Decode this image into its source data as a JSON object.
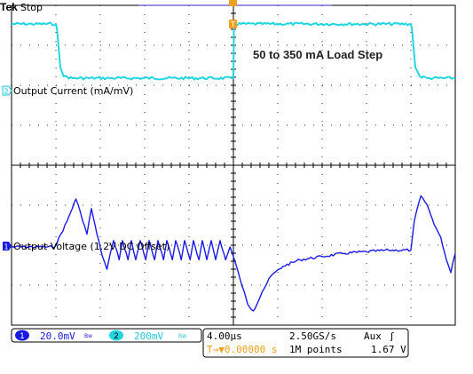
{
  "header": {
    "brand": "Tek",
    "status": "Stop",
    "trigger_marker": "T",
    "ch1_marker": "1",
    "ch2_marker": "2"
  },
  "annotations": {
    "load_step": "50 to 350 mA Load Step",
    "ch2_label": "Output Current (mA/mV)",
    "ch1_label": "Output Voltage (1.2V DC Offset)"
  },
  "status_bar": {
    "ch1_num": "1",
    "ch1_scale": "20.0mV",
    "ch1_bw": "Bw",
    "ch2_num": "2",
    "ch2_scale": "200mV",
    "ch2_bw": "Bw",
    "timebase": "4.00µs",
    "sample_rate": "2.50GS/s",
    "trigger_source": "Aux",
    "trigger_slope": "ʃ",
    "trigger_position": "T→▼0.00000 s",
    "record_length": "1M points",
    "trigger_level": "1.67 V"
  },
  "colors": {
    "ch1": "#1a1ae6",
    "ch2": "#22d6e0",
    "grid": "#000000",
    "trigger": "#f0a020"
  },
  "chart_data": {
    "type": "line",
    "x_divisions": 10,
    "y_divisions": 8,
    "time_per_div_us": 4.0,
    "xlim_us": [
      -20,
      20
    ],
    "ylim_div": [
      -4,
      4
    ],
    "series": [
      {
        "name": "Output Current (mA/mV)",
        "channel": 2,
        "units": "mA",
        "points_us_mA": [
          [
            -20,
            350
          ],
          [
            -16,
            350
          ],
          [
            -15.9,
            320
          ],
          [
            -15.6,
            110
          ],
          [
            -15.3,
            60
          ],
          [
            -14.5,
            50
          ],
          [
            0,
            50
          ],
          [
            0.05,
            350
          ],
          [
            16,
            350
          ],
          [
            16.1,
            320
          ],
          [
            16.4,
            110
          ],
          [
            16.8,
            60
          ],
          [
            17.5,
            50
          ],
          [
            20,
            50
          ]
        ]
      },
      {
        "name": "Output Voltage (1.2V DC Offset)",
        "channel": 1,
        "units": "mV",
        "points_us_mV": [
          [
            -20,
            0
          ],
          [
            -16.1,
            0
          ],
          [
            -15,
            8
          ],
          [
            -14.2,
            15
          ],
          [
            -13.8,
            11
          ],
          [
            -13.2,
            4
          ],
          [
            -12.8,
            12
          ],
          [
            -12.3,
            4
          ],
          [
            -11.8,
            -3
          ],
          [
            -11.4,
            -7
          ],
          [
            -11.1,
            -2
          ],
          [
            -10.8,
            2
          ],
          [
            -10.3,
            -4
          ],
          [
            -10,
            2
          ],
          [
            -9.5,
            -4
          ],
          [
            -9.2,
            2
          ],
          [
            -8.8,
            -4
          ],
          [
            -8.4,
            2
          ],
          [
            -7.9,
            -4
          ],
          [
            -7.6,
            2
          ],
          [
            -7.1,
            -4
          ],
          [
            -6.8,
            2
          ],
          [
            -6.3,
            -4
          ],
          [
            -6,
            2
          ],
          [
            -5.5,
            -4
          ],
          [
            -5.2,
            2
          ],
          [
            -4.7,
            -4
          ],
          [
            -4.4,
            2
          ],
          [
            -3.9,
            -4
          ],
          [
            -3.6,
            2
          ],
          [
            -3.1,
            -4
          ],
          [
            -2.8,
            2
          ],
          [
            -2.4,
            -4
          ],
          [
            -2,
            2
          ],
          [
            -1.6,
            -4
          ],
          [
            -1.2,
            2
          ],
          [
            -0.7,
            -4
          ],
          [
            -0.3,
            0
          ],
          [
            0,
            -3
          ],
          [
            0.6,
            -10
          ],
          [
            1.3,
            -18
          ],
          [
            1.8,
            -20
          ],
          [
            2.6,
            -14
          ],
          [
            3.4,
            -9
          ],
          [
            4.5,
            -6
          ],
          [
            6,
            -4
          ],
          [
            8,
            -3
          ],
          [
            10,
            -2
          ],
          [
            12,
            -1.5
          ],
          [
            14,
            -1
          ],
          [
            16,
            -1
          ],
          [
            16.3,
            8
          ],
          [
            16.9,
            16
          ],
          [
            17.6,
            12
          ],
          [
            18.1,
            7
          ],
          [
            18.7,
            3
          ],
          [
            19.2,
            -4
          ],
          [
            19.6,
            -8
          ],
          [
            20,
            -2
          ]
        ]
      }
    ]
  }
}
